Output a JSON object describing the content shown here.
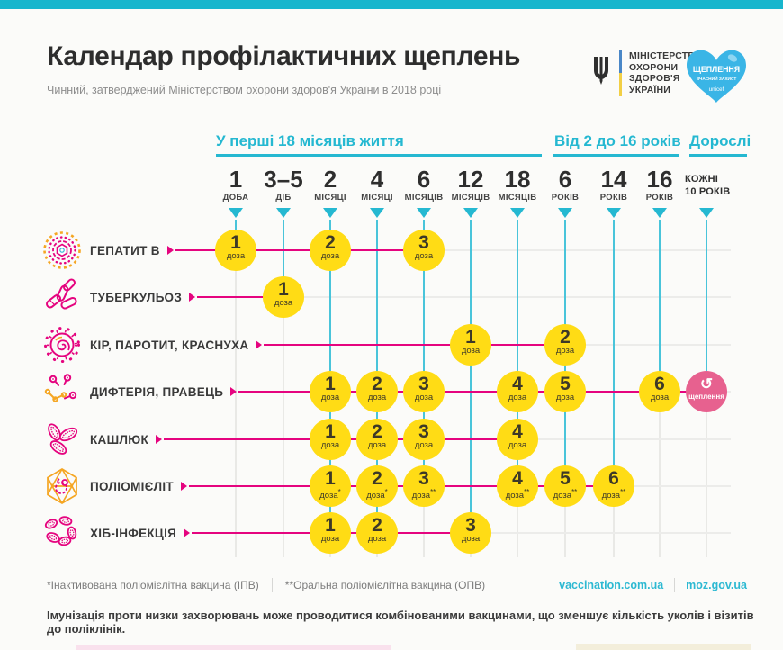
{
  "header": {
    "title": "Календар профілактичних щеплень",
    "subtitle": "Чинний, затверджений Міністерством охорони здоров'я України в 2018 році"
  },
  "logos": {
    "ministry_lines": [
      "МІНІСТЕРСТВО",
      "ОХОРОНИ",
      "ЗДОРОВ'Я",
      "УКРАЇНИ"
    ],
    "heart_title": "ЩЕПЛЕННЯ",
    "heart_subtitle": "ВЧАСНИЙ ЗАХИСТ",
    "heart_brand": "unicef"
  },
  "sections": [
    {
      "label": "У перші 18 місяців життя"
    },
    {
      "label": "Від 2 до 16 років"
    },
    {
      "label": "Дорослі"
    }
  ],
  "columns": [
    {
      "value": "1",
      "unit": "ДОБА"
    },
    {
      "value": "3–5",
      "unit": "ДІБ"
    },
    {
      "value": "2",
      "unit": "МІСЯЦІ"
    },
    {
      "value": "4",
      "unit": "МІСЯЦІ"
    },
    {
      "value": "6",
      "unit": "МІСЯЦІВ"
    },
    {
      "value": "12",
      "unit": "МІСЯЦІВ"
    },
    {
      "value": "18",
      "unit": "МІСЯЦІВ"
    },
    {
      "value": "6",
      "unit": "РОКІВ"
    },
    {
      "value": "14",
      "unit": "РОКІВ"
    },
    {
      "value": "16",
      "unit": "РОКІВ"
    },
    {
      "value": "КОЖНІ",
      "unit": "10 РОКІВ",
      "text_only": true
    }
  ],
  "dose_word": "доза",
  "rows": [
    {
      "name": "ГЕПАТИТ В",
      "icon": "hepatitis-b",
      "doses": [
        {
          "col": 0,
          "n": "1"
        },
        {
          "col": 2,
          "n": "2"
        },
        {
          "col": 4,
          "n": "3"
        }
      ]
    },
    {
      "name": "ТУБЕРКУЛЬОЗ",
      "icon": "tuberculosis",
      "doses": [
        {
          "col": 1,
          "n": "1"
        }
      ]
    },
    {
      "name": "КІР, ПАРОТИТ, КРАСНУХА",
      "icon": "measles",
      "doses": [
        {
          "col": 5,
          "n": "1"
        },
        {
          "col": 7,
          "n": "2"
        }
      ]
    },
    {
      "name": "ДИФТЕРІЯ, ПРАВЕЦЬ",
      "icon": "diphtheria",
      "doses": [
        {
          "col": 2,
          "n": "1"
        },
        {
          "col": 3,
          "n": "2"
        },
        {
          "col": 4,
          "n": "3"
        },
        {
          "col": 6,
          "n": "4"
        },
        {
          "col": 7,
          "n": "5"
        },
        {
          "col": 9,
          "n": "6"
        }
      ],
      "revaccination": {
        "col": 10,
        "label": "щеплення"
      }
    },
    {
      "name": "КАШЛЮК",
      "icon": "pertussis",
      "doses": [
        {
          "col": 2,
          "n": "1"
        },
        {
          "col": 3,
          "n": "2"
        },
        {
          "col": 4,
          "n": "3"
        },
        {
          "col": 6,
          "n": "4"
        }
      ]
    },
    {
      "name": "ПОЛІОМІЄЛІТ",
      "icon": "polio",
      "doses": [
        {
          "col": 2,
          "n": "1",
          "mark": "*"
        },
        {
          "col": 3,
          "n": "2",
          "mark": "*"
        },
        {
          "col": 4,
          "n": "3",
          "mark": "**"
        },
        {
          "col": 6,
          "n": "4",
          "mark": "**"
        },
        {
          "col": 7,
          "n": "5",
          "mark": "**"
        },
        {
          "col": 8,
          "n": "6",
          "mark": "**"
        }
      ]
    },
    {
      "name": "ХІБ-ІНФЕКЦІЯ",
      "icon": "hib",
      "doses": [
        {
          "col": 2,
          "n": "1"
        },
        {
          "col": 3,
          "n": "2"
        },
        {
          "col": 5,
          "n": "3"
        }
      ]
    }
  ],
  "footnotes": [
    "*Інактивована поліомієлітна вакцина (ІПВ)",
    "**Оральна поліомієлітна вакцина (ОПВ)"
  ],
  "links": [
    "vaccination.com.ua",
    "moz.gov.ua"
  ],
  "bottom_note": "Імунізація проти низки захворювань може проводитися комбінованими вакцинами, що зменшує кількість уколів і візитів до поліклінік.",
  "colors": {
    "top_bar": "#18b6cd",
    "accent_cyan": "#25b8d1",
    "grid_cyan": "#49c4da",
    "magenta": "#e5047f",
    "dose_yellow": "#ffdc15",
    "revacc_pink": "#e7618f",
    "dark_text": "#333333",
    "muted_text": "#8d8d8d"
  }
}
